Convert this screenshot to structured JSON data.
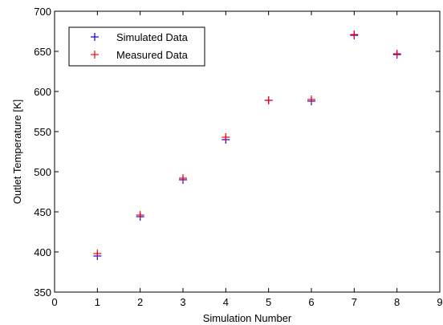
{
  "chart_data": {
    "type": "scatter",
    "title": "",
    "xlabel": "Simulation Number",
    "ylabel": "Outlet Temperature [K]",
    "xlim": [
      0,
      9
    ],
    "ylim": [
      350,
      700
    ],
    "xticks": [
      0,
      1,
      2,
      3,
      4,
      5,
      6,
      7,
      8,
      9
    ],
    "yticks": [
      350,
      400,
      450,
      500,
      550,
      600,
      650,
      700
    ],
    "grid": false,
    "legend_position": "top-left",
    "marker": "plus",
    "series": [
      {
        "name": "Simulated Data",
        "color": "#0000ff",
        "x": [
          1,
          2,
          3,
          4,
          5,
          6,
          7,
          8
        ],
        "y": [
          395,
          444,
          490,
          540,
          589,
          588,
          670,
          646
        ]
      },
      {
        "name": "Measured Data",
        "color": "#ff0000",
        "x": [
          1,
          2,
          3,
          4,
          5,
          6,
          7,
          8
        ],
        "y": [
          398,
          446,
          492,
          543,
          589,
          590,
          671,
          647
        ]
      }
    ]
  }
}
